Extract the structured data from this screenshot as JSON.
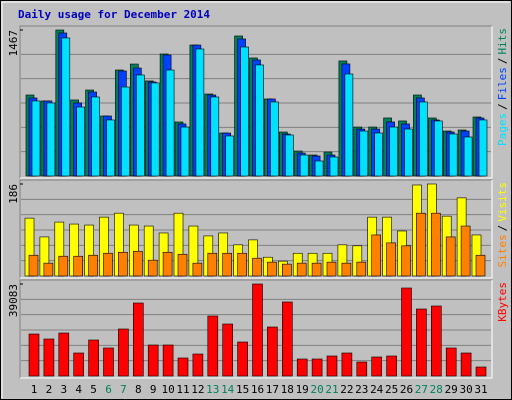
{
  "title": "Daily usage for December 2014",
  "legend_separator": "/",
  "chart_data": [
    {
      "type": "bar",
      "ylim": [
        0,
        1467
      ],
      "yticks": [
        1467
      ],
      "series": [
        {
          "name": "Hits",
          "color": "#00805c",
          "values": [
            814,
            754,
            1467,
            764,
            864,
            603,
            1065,
            1125,
            955,
            1226,
            543,
            1316,
            824,
            432,
            1407,
            1186,
            774,
            442,
            251,
            211,
            241,
            1156,
            492,
            492,
            583,
            553,
            814,
            583,
            452,
            462,
            593
          ]
        },
        {
          "name": "Files",
          "color": "#0040ff",
          "values": [
            784,
            754,
            1437,
            734,
            844,
            603,
            1055,
            1085,
            945,
            1216,
            523,
            1316,
            814,
            432,
            1377,
            1166,
            774,
            422,
            231,
            201,
            211,
            1126,
            472,
            472,
            543,
            523,
            784,
            563,
            442,
            452,
            583
          ]
        },
        {
          "name": "Pages",
          "color": "#00e0ff",
          "values": [
            754,
            734,
            1387,
            693,
            794,
            563,
            894,
            1015,
            935,
            1065,
            492,
            1276,
            794,
            402,
            1296,
            1116,
            744,
            412,
            211,
            151,
            191,
            1025,
            452,
            432,
            492,
            472,
            744,
            553,
            422,
            392,
            563
          ]
        }
      ]
    },
    {
      "type": "bar",
      "ylim": [
        0,
        186
      ],
      "yticks": [
        186
      ],
      "series": [
        {
          "name": "Visits",
          "color": "#ffff00",
          "values": [
            117,
            79,
            109,
            105,
            103,
            119,
            127,
            103,
            101,
            87,
            127,
            101,
            81,
            87,
            63,
            73,
            38,
            30,
            46,
            46,
            46,
            63,
            61,
            119,
            119,
            91,
            184,
            186,
            121,
            158,
            83
          ]
        },
        {
          "name": "Sites",
          "color": "#ff8000",
          "values": [
            42,
            26,
            40,
            40,
            42,
            46,
            48,
            50,
            32,
            48,
            44,
            26,
            46,
            46,
            46,
            36,
            28,
            24,
            26,
            26,
            28,
            26,
            28,
            83,
            67,
            61,
            127,
            127,
            79,
            101,
            42
          ]
        }
      ]
    },
    {
      "type": "bar",
      "ylim": [
        0,
        39083
      ],
      "yticks": [
        39083
      ],
      "categories": [
        "1",
        "2",
        "3",
        "4",
        "5",
        "6",
        "7",
        "8",
        "9",
        "10",
        "11",
        "12",
        "13",
        "14",
        "15",
        "16",
        "17",
        "18",
        "19",
        "20",
        "21",
        "22",
        "23",
        "24",
        "25",
        "26",
        "27",
        "28",
        "29",
        "30",
        "31"
      ],
      "weekends": [
        5,
        6,
        12,
        13,
        19,
        20,
        26,
        27
      ],
      "weekend_color": "#00805c",
      "series": [
        {
          "name": "KBytes",
          "color": "#ff0000",
          "values": [
            17842,
            15718,
            18266,
            9770,
            15293,
            11894,
            19966,
            31010,
            13169,
            13169,
            7646,
            9346,
            25488,
            22090,
            14443,
            39083,
            20815,
            31435,
            7222,
            7222,
            8496,
            9770,
            5947,
            8071,
            8496,
            37382,
            28462,
            29736,
            11894,
            9770,
            3823
          ]
        }
      ]
    }
  ]
}
